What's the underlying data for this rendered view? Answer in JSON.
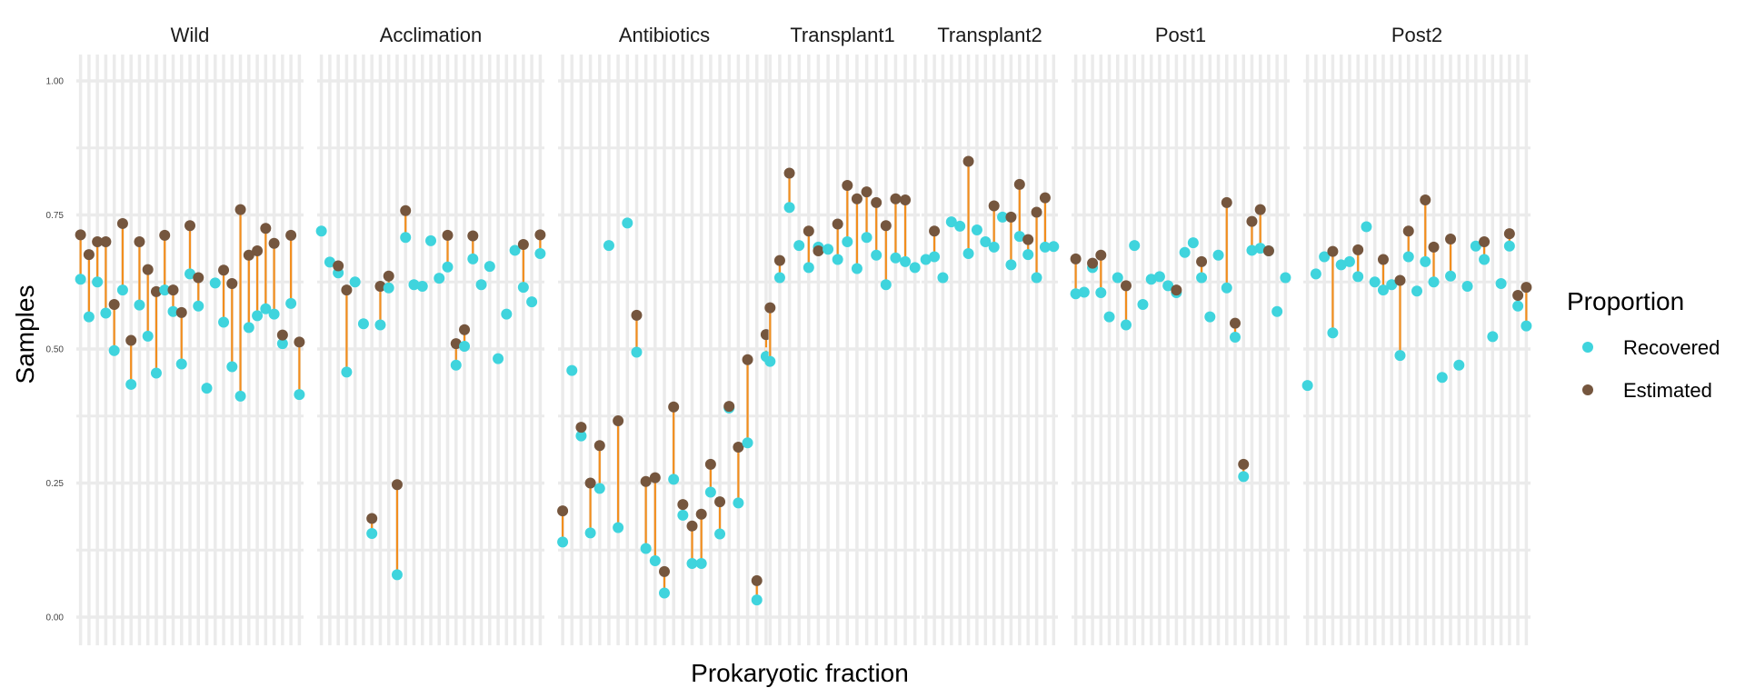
{
  "chart_data": {
    "type": "scatter",
    "subtype": "dumbbell",
    "xlabel": "Prokaryotic fraction",
    "ylabel": "Samples",
    "ylim": [
      0,
      1
    ],
    "yticks": [
      0,
      0.25,
      0.5,
      0.75,
      1
    ],
    "ytick_labels": [
      "0.00",
      "0.25",
      "0.50",
      "0.75",
      "1.00"
    ],
    "grid": true,
    "x_tick_labels_shown": false,
    "connector_color": "#f28e1e",
    "legend": {
      "title": "Proportion",
      "position": "right",
      "entries": [
        {
          "label": "Recovered",
          "color": "#3fd4dd"
        },
        {
          "label": "Estimated",
          "color": "#75563e"
        }
      ]
    },
    "panels": [
      {
        "name": "Wild",
        "recovered": [
          0.63,
          0.56,
          0.625,
          0.567,
          0.497,
          0.61,
          0.434,
          0.582,
          0.524,
          0.455,
          0.61,
          0.57,
          0.472,
          0.64,
          0.58,
          0.427,
          0.623,
          0.55,
          0.467,
          0.412,
          0.54,
          0.562,
          0.575,
          0.565,
          0.51,
          0.585,
          0.415
        ],
        "estimated": [
          0.713,
          0.676,
          0.7,
          0.7,
          0.583,
          0.734,
          0.516,
          0.7,
          0.648,
          0.607,
          0.712,
          0.61,
          0.568,
          0.73,
          0.633,
          null,
          null,
          0.647,
          0.622,
          0.76,
          0.675,
          0.683,
          0.725,
          0.697,
          0.526,
          0.712,
          0.513
        ]
      },
      {
        "name": "Acclimation",
        "recovered": [
          0.72,
          0.662,
          0.642,
          0.457,
          0.625,
          0.547,
          0.156,
          0.545,
          0.614,
          0.079,
          0.708,
          0.62,
          0.617,
          0.702,
          0.632,
          0.653,
          0.47,
          0.505,
          0.668,
          0.62,
          0.654,
          0.482,
          0.565,
          0.684,
          0.615,
          0.588,
          0.678
        ],
        "estimated": [
          null,
          null,
          0.655,
          0.61,
          null,
          null,
          0.184,
          0.617,
          0.636,
          0.247,
          0.758,
          null,
          null,
          null,
          null,
          0.712,
          0.51,
          0.536,
          0.711,
          null,
          null,
          null,
          null,
          null,
          0.695,
          null,
          0.713
        ]
      },
      {
        "name": "Antibiotics",
        "recovered": [
          0.14,
          0.46,
          0.338,
          0.157,
          0.24,
          0.693,
          0.167,
          0.735,
          0.494,
          0.128,
          0.105,
          0.045,
          0.257,
          0.19,
          0.1,
          0.1,
          0.233,
          0.155,
          0.39,
          0.213,
          0.325,
          0.032,
          0.486
        ],
        "estimated": [
          0.198,
          null,
          0.354,
          0.25,
          0.32,
          null,
          0.366,
          null,
          0.563,
          0.253,
          0.26,
          0.085,
          0.392,
          0.21,
          0.17,
          0.192,
          0.285,
          0.215,
          0.393,
          0.317,
          0.48,
          0.068,
          0.527
        ]
      },
      {
        "name": "Transplant1",
        "recovered": [
          0.477,
          0.633,
          0.764,
          0.693,
          0.652,
          0.69,
          0.686,
          0.667,
          0.7,
          0.65,
          0.708,
          0.675,
          0.62,
          0.67,
          0.663,
          0.652
        ],
        "estimated": [
          0.577,
          0.665,
          0.828,
          null,
          0.72,
          0.683,
          null,
          0.733,
          0.805,
          0.78,
          0.793,
          0.773,
          0.73,
          0.78,
          0.778,
          null
        ]
      },
      {
        "name": "Transplant2",
        "recovered": [
          0.667,
          0.672,
          0.633,
          0.737,
          0.729,
          0.678,
          0.722,
          0.7,
          0.69,
          0.746,
          0.657,
          0.71,
          0.676,
          0.633,
          0.69,
          0.691
        ],
        "estimated": [
          null,
          0.72,
          null,
          null,
          null,
          0.85,
          null,
          null,
          0.767,
          null,
          0.746,
          0.807,
          0.704,
          0.755,
          0.782,
          null
        ]
      },
      {
        "name": "Post1",
        "recovered": [
          0.603,
          0.606,
          0.652,
          0.605,
          0.56,
          0.633,
          0.545,
          0.693,
          0.583,
          0.63,
          0.635,
          0.618,
          0.605,
          0.68,
          0.698,
          0.633,
          0.56,
          0.675,
          0.614,
          0.522,
          0.262,
          0.684,
          0.688,
          0.683,
          0.57,
          0.633
        ],
        "estimated": [
          0.668,
          null,
          0.66,
          0.675,
          null,
          null,
          0.618,
          null,
          null,
          null,
          null,
          null,
          0.61,
          null,
          null,
          0.663,
          null,
          null,
          0.773,
          0.548,
          0.285,
          0.738,
          0.76,
          0.683,
          null,
          null
        ]
      },
      {
        "name": "Post2",
        "recovered": [
          0.432,
          0.64,
          0.672,
          0.53,
          0.657,
          0.663,
          0.635,
          0.728,
          0.625,
          0.61,
          0.62,
          0.488,
          0.672,
          0.608,
          0.663,
          0.625,
          0.447,
          0.636,
          0.47,
          0.617,
          0.692,
          0.667,
          0.523,
          0.622,
          0.692,
          0.58,
          0.543
        ],
        "estimated": [
          null,
          null,
          null,
          0.682,
          null,
          null,
          0.685,
          null,
          null,
          0.667,
          null,
          0.628,
          0.72,
          null,
          0.778,
          0.69,
          null,
          0.705,
          null,
          null,
          null,
          0.7,
          null,
          null,
          0.715,
          0.6,
          0.615
        ]
      }
    ]
  }
}
